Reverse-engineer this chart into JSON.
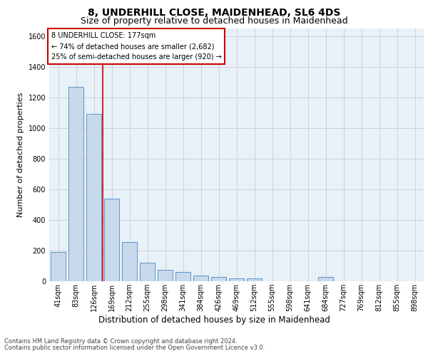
{
  "title1": "8, UNDERHILL CLOSE, MAIDENHEAD, SL6 4DS",
  "title2": "Size of property relative to detached houses in Maidenhead",
  "xlabel": "Distribution of detached houses by size in Maidenhead",
  "ylabel": "Number of detached properties",
  "footer1": "Contains HM Land Registry data © Crown copyright and database right 2024.",
  "footer2": "Contains public sector information licensed under the Open Government Licence v3.0.",
  "bar_labels": [
    "41sqm",
    "83sqm",
    "126sqm",
    "169sqm",
    "212sqm",
    "255sqm",
    "298sqm",
    "341sqm",
    "384sqm",
    "426sqm",
    "469sqm",
    "512sqm",
    "555sqm",
    "598sqm",
    "641sqm",
    "684sqm",
    "727sqm",
    "769sqm",
    "812sqm",
    "855sqm",
    "898sqm"
  ],
  "bar_values": [
    190,
    1270,
    1090,
    540,
    255,
    120,
    75,
    60,
    35,
    30,
    20,
    20,
    0,
    0,
    0,
    30,
    0,
    0,
    0,
    0,
    0
  ],
  "bar_color": "#c9d9ec",
  "bar_edge_color": "#5a96c8",
  "annotation_text": "8 UNDERHILL CLOSE: 177sqm\n← 74% of detached houses are smaller (2,682)\n25% of semi-detached houses are larger (920) →",
  "annotation_box_color": "#ffffff",
  "annotation_box_edge_color": "#cc0000",
  "vline_x": 2.5,
  "vline_color": "#cc0000",
  "ylim": [
    0,
    1650
  ],
  "yticks": [
    0,
    200,
    400,
    600,
    800,
    1000,
    1200,
    1400,
    1600
  ],
  "grid_color": "#cccccc",
  "bg_color": "#e8f0f8",
  "title1_fontsize": 10,
  "title2_fontsize": 9,
  "xlabel_fontsize": 8.5,
  "ylabel_fontsize": 8,
  "footer_fontsize": 6,
  "annot_fontsize": 7,
  "tick_fontsize": 7
}
